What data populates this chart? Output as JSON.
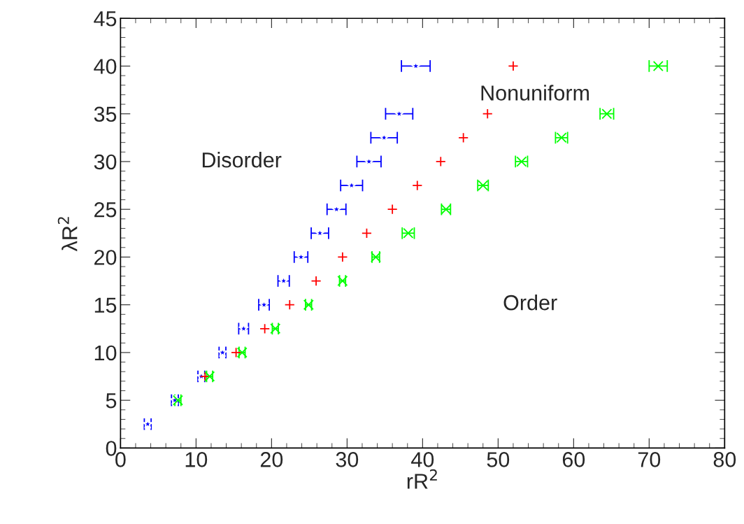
{
  "chart_data": {
    "type": "scatter",
    "xlabel": "rR$^{2}$",
    "ylabel": "λR$^{2}$",
    "xlim": [
      0,
      80
    ],
    "ylim": [
      0,
      45
    ],
    "xticks": [
      0,
      10,
      20,
      30,
      40,
      50,
      60,
      70,
      80
    ],
    "yticks": [
      0,
      5,
      10,
      15,
      20,
      25,
      30,
      35,
      40,
      45
    ],
    "grid": false,
    "legend": false,
    "annotations": [
      "Disorder",
      "Nonuniform",
      "Order"
    ],
    "series": [
      {
        "color": "#0000ff",
        "marker": "star",
        "x": [
          3.6,
          7.2,
          10.7,
          13.5,
          16.3,
          19.0,
          21.6,
          23.9,
          26.4,
          28.6,
          30.6,
          32.9,
          34.9,
          36.9,
          39.1
        ],
        "values": [
          2.5,
          5,
          7.5,
          10,
          12.5,
          15,
          17.5,
          20,
          22.5,
          25,
          27.5,
          30,
          32.5,
          35,
          40
        ],
        "xerrors": [
          0.45,
          0.45,
          0.45,
          0.45,
          0.65,
          0.7,
          0.75,
          0.9,
          1.15,
          1.25,
          1.45,
          1.6,
          1.75,
          1.8,
          1.9
        ]
      },
      {
        "color": "#ff0000",
        "marker": "plus",
        "x": [
          11.2,
          15.3,
          19.1,
          22.4,
          25.9,
          29.4,
          32.6,
          36.0,
          39.3,
          42.4,
          45.4,
          48.6,
          52.0
        ],
        "values": [
          7.5,
          10,
          12.5,
          15,
          17.5,
          20,
          22.5,
          25,
          27.5,
          30,
          32.5,
          35,
          40
        ]
      },
      {
        "color": "#00ff00",
        "marker": "cross",
        "x": [
          7.6,
          11.8,
          16.1,
          20.5,
          24.9,
          29.4,
          33.8,
          38.1,
          43.1,
          48.0,
          53.1,
          58.4,
          64.4,
          71.2
        ],
        "values": [
          5,
          7.5,
          10,
          12.5,
          15,
          17.5,
          20,
          22.5,
          25,
          27.5,
          30,
          32.5,
          35,
          40
        ],
        "xerrors": [
          0.4,
          0.4,
          0.4,
          0.4,
          0.4,
          0.4,
          0.5,
          0.8,
          0.6,
          0.7,
          0.8,
          0.8,
          0.9,
          1.2
        ]
      }
    ]
  }
}
